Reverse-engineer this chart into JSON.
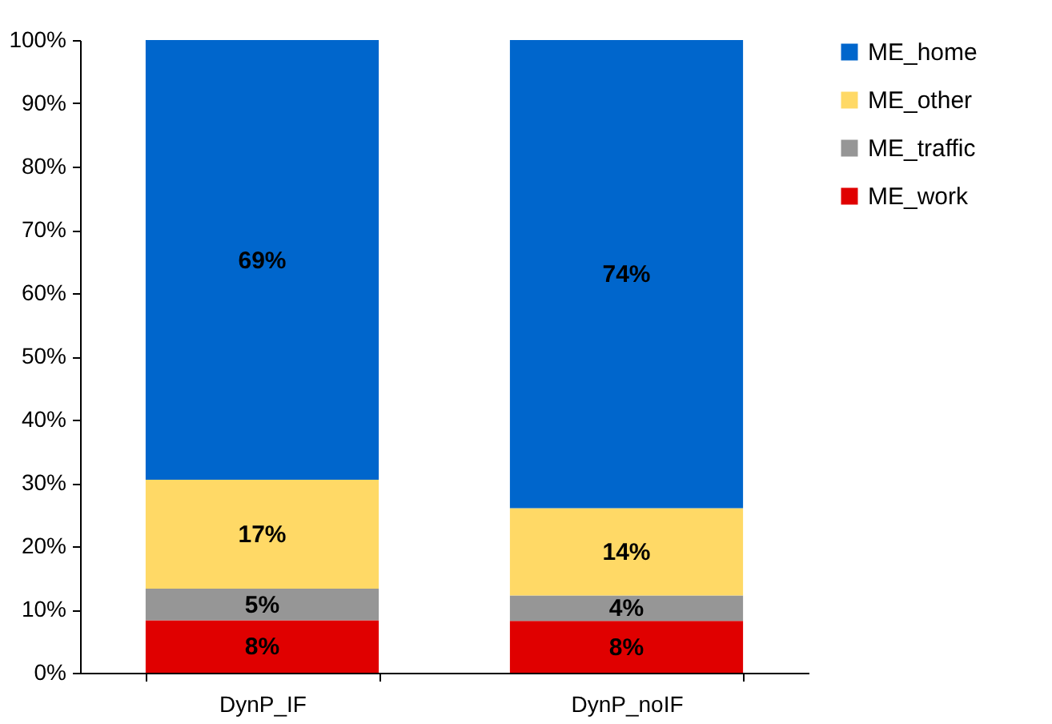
{
  "chart_data": {
    "type": "bar",
    "stacked": true,
    "categories": [
      "DynP_IF",
      "DynP_noIF"
    ],
    "series": [
      {
        "name": "ME_work",
        "color": "#e00000",
        "values": [
          8.3,
          8.2
        ],
        "value_labels": [
          "8%",
          "8%"
        ]
      },
      {
        "name": "ME_traffic",
        "color": "#969696",
        "values": [
          5.0,
          4.0
        ],
        "value_labels": [
          "5%",
          "4%"
        ]
      },
      {
        "name": "ME_other",
        "color": "#ffd966",
        "values": [
          17.2,
          13.8
        ],
        "value_labels": [
          "17%",
          "14%"
        ]
      },
      {
        "name": "ME_home",
        "color": "#0066cc",
        "values": [
          69.5,
          74.0
        ],
        "value_labels": [
          "69%",
          "74%"
        ]
      }
    ],
    "ylim": [
      0,
      100
    ],
    "yticks": [
      {
        "value": 0,
        "label": "0%"
      },
      {
        "value": 10,
        "label": "10%"
      },
      {
        "value": 20,
        "label": "20%"
      },
      {
        "value": 30,
        "label": "30%"
      },
      {
        "value": 40,
        "label": "40%"
      },
      {
        "value": 50,
        "label": "50%"
      },
      {
        "value": 60,
        "label": "60%"
      },
      {
        "value": 70,
        "label": "70%"
      },
      {
        "value": 80,
        "label": "80%"
      },
      {
        "value": 90,
        "label": "90%"
      },
      {
        "value": 100,
        "label": "100%"
      }
    ],
    "grid": false,
    "legend": "right"
  }
}
